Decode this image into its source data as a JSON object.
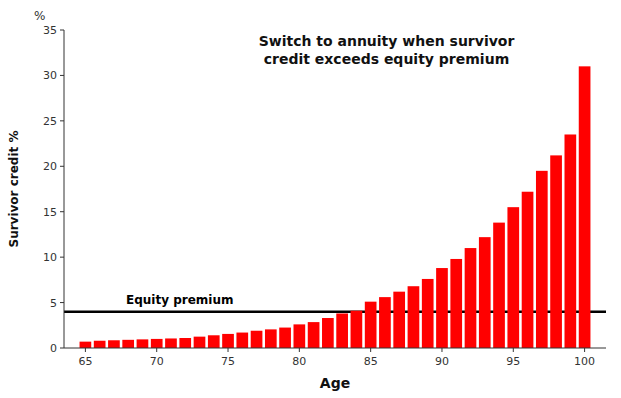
{
  "chart_data": {
    "type": "bar",
    "title": "Switch to annuity when survivor\ncredit exceeds equity premium",
    "x_label": "Age",
    "y_label": "Survivor credit %",
    "x": [
      65,
      66,
      67,
      68,
      69,
      70,
      71,
      72,
      73,
      74,
      75,
      76,
      77,
      78,
      79,
      80,
      81,
      82,
      83,
      84,
      85,
      86,
      87,
      88,
      89,
      90,
      91,
      92,
      93,
      94,
      95,
      96,
      97,
      98,
      99,
      100
    ],
    "values": [
      0.7,
      0.8,
      0.85,
      0.9,
      0.95,
      1.0,
      1.05,
      1.1,
      1.25,
      1.4,
      1.55,
      1.7,
      1.9,
      2.05,
      2.25,
      2.6,
      2.85,
      3.3,
      3.8,
      4.1,
      5.1,
      5.6,
      6.2,
      6.8,
      7.6,
      8.8,
      9.8,
      11.0,
      12.2,
      13.8,
      15.5,
      17.2,
      19.5,
      21.2,
      23.5,
      31.0
    ],
    "color": "#FF0000",
    "xlim": [
      63.5,
      101.5
    ],
    "xticks": [
      65,
      70,
      75,
      80,
      85,
      90,
      95,
      100
    ],
    "ylim": [
      0,
      35
    ],
    "yticks": [
      0,
      5,
      10,
      15,
      20,
      25,
      30,
      35
    ],
    "grid": false,
    "annotations": [
      {
        "text": "Equity premium",
        "y": 4.0,
        "color": "#000000"
      },
      {
        "text": "%"
      }
    ]
  }
}
